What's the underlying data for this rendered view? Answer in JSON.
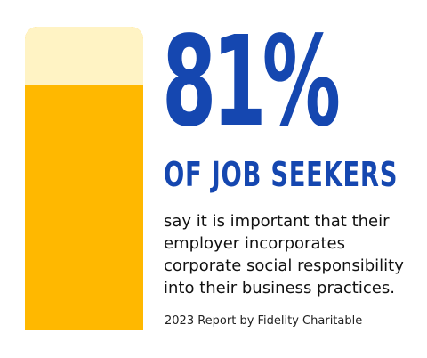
{
  "stat": {
    "value_text": "81%",
    "fill_fraction": 0.81
  },
  "headline": "OF JOB SEEKERS",
  "body": "say it is important that their employer incorporates corporate social responsibility into their business practices.",
  "source": "2023 Report by Fidelity Charitable",
  "colors": {
    "accent_blue": "#1547B0",
    "bar_fill": "#FFB800",
    "bar_empty": "#FFF3C4"
  }
}
